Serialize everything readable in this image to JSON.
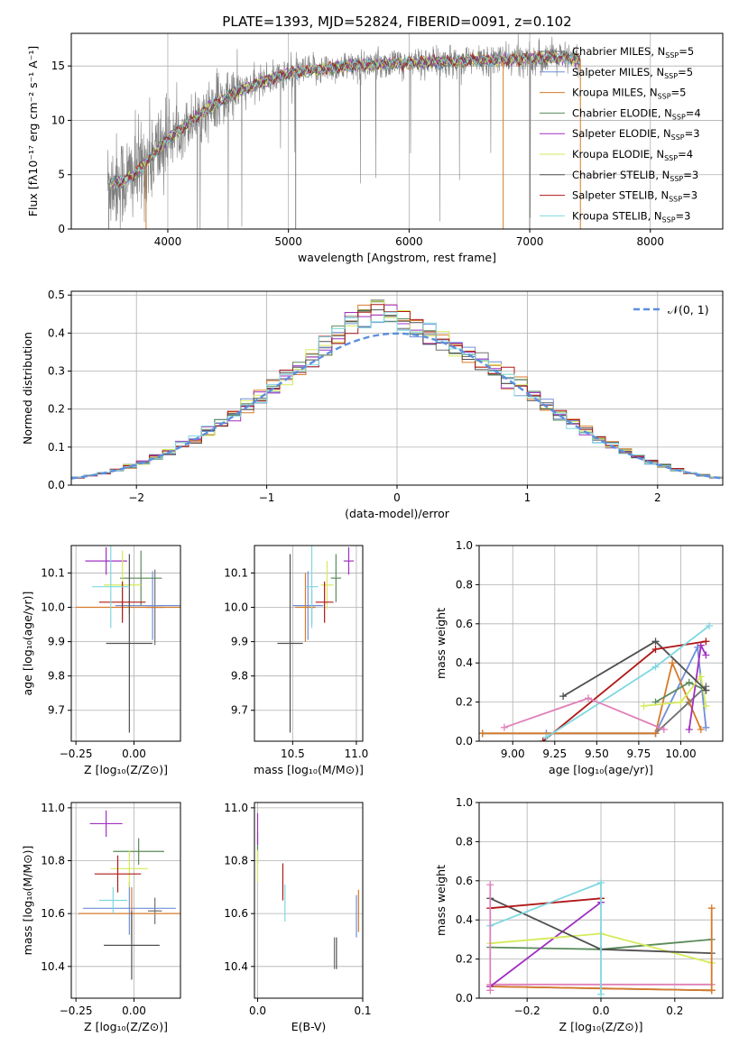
{
  "figure_title": "PLATE=1393, MJD=52824, FIBERID=0091, z=0.102",
  "legend_colors": [
    "#6a9a5a",
    "#6a9a5a",
    "#c89640",
    "#4e8a4e",
    "#9b30c0",
    "#d8e060",
    "#505050",
    "#b01818",
    "#7fd3dc"
  ],
  "models": [
    {
      "name": "Chabrier MILES",
      "nssp": 5,
      "color": "#707070"
    },
    {
      "name": "Salpeter MILES",
      "nssp": 5,
      "color": "#6f8fd8"
    },
    {
      "name": "Kroupa MILES",
      "nssp": 5,
      "color": "#d67a2a"
    },
    {
      "name": "Chabrier ELODIE",
      "nssp": 4,
      "color": "#5a8a5a"
    },
    {
      "name": "Salpeter ELODIE",
      "nssp": 3,
      "color": "#a030c0"
    },
    {
      "name": "Kroupa ELODIE",
      "nssp": 4,
      "color": "#d6ea5a"
    },
    {
      "name": "Chabrier STELIB",
      "nssp": 3,
      "color": "#505050"
    },
    {
      "name": "Salpeter STELIB",
      "nssp": 3,
      "color": "#b01818"
    },
    {
      "name": "Kroupa STELIB",
      "nssp": 3,
      "color": "#7fd8e0"
    }
  ],
  "chart_data": [
    {
      "id": "spectrum",
      "type": "line",
      "xlabel": "wavelength [Angstrom, rest frame]",
      "ylabel": "Flux [fλ10⁻¹⁷ erg cm⁻² s⁻¹ A⁻¹]",
      "xlim": [
        3200,
        8600
      ],
      "ylim": [
        0,
        18
      ],
      "xticks": [
        4000,
        5000,
        6000,
        7000,
        8000
      ],
      "yticks": [
        0,
        5,
        10,
        15
      ],
      "legend_position": "right",
      "data_wavelength_range": [
        3500,
        7420
      ],
      "continuum": {
        "x": [
          3500,
          3650,
          3750,
          3850,
          4000,
          4200,
          4500,
          4800,
          5000,
          5200,
          5500,
          5800,
          6000,
          6300,
          6600,
          6800,
          7000,
          7200,
          7420
        ],
        "y": [
          4.2,
          4.5,
          5.3,
          6.5,
          8.3,
          10.0,
          12.3,
          13.6,
          14.3,
          14.6,
          15.0,
          15.2,
          15.3,
          15.4,
          15.5,
          15.6,
          15.7,
          15.8,
          15.6
        ]
      }
    },
    {
      "id": "residuals",
      "type": "line",
      "xlabel": "(data-model)/error",
      "ylabel": "Normed distribution",
      "xlim": [
        -2.5,
        2.5
      ],
      "ylim": [
        0,
        0.51
      ],
      "xticks": [
        -2,
        -1,
        0,
        1,
        2
      ],
      "yticks": [
        0,
        0.1,
        0.2,
        0.3,
        0.4,
        0.5
      ],
      "legend": "𝒩(0, 1)",
      "legend_position": "top-right",
      "reference_curve": "normal(0,1)",
      "bin_width": 0.1,
      "histogram_peak": [
        0.49,
        0.47,
        0.46,
        0.44,
        0.43,
        0.41,
        0.4,
        0.42,
        0.44
      ]
    },
    {
      "id": "age-vs-Z",
      "type": "scatter",
      "xlabel": "Z [log₁₀(Z/Z⊙)]",
      "ylabel": "age  [log₁₀(age/yr)]",
      "xlim": [
        -0.27,
        0.2
      ],
      "ylim": [
        9.61,
        10.18
      ],
      "xticks": [
        -0.25,
        0.0
      ],
      "yticks": [
        9.7,
        9.8,
        9.9,
        10.0,
        10.1
      ],
      "points": [
        {
          "model": 0,
          "x": 0.09,
          "y": 10.0,
          "xerr": 0.04,
          "yerr": 0.11
        },
        {
          "model": 1,
          "x": 0.08,
          "y": 10.005,
          "xerr": 0.16,
          "yerr": 0.1
        },
        {
          "model": 2,
          "x": -0.02,
          "y": 10.0,
          "xerr": 0.23,
          "yerr": 0.02
        },
        {
          "model": 3,
          "x": 0.03,
          "y": 10.085,
          "xerr": 0.09,
          "yerr": 0.08
        },
        {
          "model": 4,
          "x": -0.12,
          "y": 10.135,
          "xerr": 0.09,
          "yerr": 0.04
        },
        {
          "model": 5,
          "x": -0.05,
          "y": 10.065,
          "xerr": 0.08,
          "yerr": 0.1
        },
        {
          "model": 6,
          "x": -0.02,
          "y": 9.895,
          "xerr": 0.1,
          "yerr": 0.26
        },
        {
          "model": 7,
          "x": -0.05,
          "y": 10.015,
          "xerr": 0.1,
          "yerr": 0.06
        },
        {
          "model": 8,
          "x": -0.1,
          "y": 10.06,
          "xerr": 0.08,
          "yerr": 0.12
        }
      ]
    },
    {
      "id": "age-vs-mass",
      "type": "scatter",
      "xlabel": "mass [log₁₀(M/M⊙)]",
      "ylabel": "",
      "xlim": [
        10.2,
        11.05
      ],
      "ylim": [
        9.61,
        10.18
      ],
      "xticks": [
        10.5,
        11.0
      ],
      "yticks": [
        9.7,
        9.8,
        9.9,
        10.0,
        10.1
      ],
      "points": [
        {
          "model": 0,
          "x": 10.65,
          "y": 10.0,
          "xerr": 0.02,
          "yerr": 0.05
        },
        {
          "model": 1,
          "x": 10.62,
          "y": 10.005,
          "xerr": 0.12,
          "yerr": 0.1
        },
        {
          "model": 2,
          "x": 10.6,
          "y": 10.0,
          "xerr": 0.08,
          "yerr": 0.1
        },
        {
          "model": 3,
          "x": 10.84,
          "y": 10.085,
          "xerr": 0.04,
          "yerr": 0.07
        },
        {
          "model": 4,
          "x": 10.94,
          "y": 10.135,
          "xerr": 0.04,
          "yerr": 0.04
        },
        {
          "model": 5,
          "x": 10.77,
          "y": 10.065,
          "xerr": 0.05,
          "yerr": 0.07
        },
        {
          "model": 6,
          "x": 10.48,
          "y": 9.895,
          "xerr": 0.1,
          "yerr": 0.26
        },
        {
          "model": 7,
          "x": 10.75,
          "y": 10.015,
          "xerr": 0.07,
          "yerr": 0.06
        },
        {
          "model": 8,
          "x": 10.65,
          "y": 10.06,
          "xerr": 0.05,
          "yerr": 0.12
        }
      ]
    },
    {
      "id": "weight-vs-age",
      "type": "line",
      "xlabel": "age  [log₁₀(age/yr)]",
      "ylabel": "mass weight",
      "xlim": [
        8.8,
        10.25
      ],
      "ylim": [
        0,
        1
      ],
      "xticks": [
        9.0,
        9.25,
        9.5,
        9.75,
        10.0
      ],
      "yticks": [
        0,
        0.2,
        0.4,
        0.6,
        0.8,
        1.0
      ],
      "series": [
        {
          "model": 0,
          "x": [
            8.82,
            9.2,
            9.85,
            10.05,
            10.15
          ],
          "y": [
            0.04,
            0.04,
            0.04,
            0.2,
            0.28
          ]
        },
        {
          "model": 1,
          "x": [
            9.2,
            9.85,
            10.1,
            10.15
          ],
          "y": [
            0.04,
            0.04,
            0.48,
            0.07
          ]
        },
        {
          "model": 2,
          "x": [
            8.82,
            9.85,
            9.95,
            10.12
          ],
          "y": [
            0.04,
            0.04,
            0.4,
            0.06
          ]
        },
        {
          "model": 3,
          "x": [
            9.85,
            10.05,
            10.15
          ],
          "y": [
            0.2,
            0.3,
            0.26
          ]
        },
        {
          "model": 4,
          "x": [
            10.05,
            10.12,
            10.15
          ],
          "y": [
            0.06,
            0.49,
            0.44
          ]
        },
        {
          "model": 5,
          "x": [
            9.78,
            10.0,
            10.12,
            10.15
          ],
          "y": [
            0.18,
            0.2,
            0.33,
            0.18
          ]
        },
        {
          "model": 6,
          "x": [
            9.3,
            9.85,
            10.15
          ],
          "y": [
            0.23,
            0.51,
            0.26
          ]
        },
        {
          "model": 7,
          "x": [
            9.18,
            9.85,
            10.15
          ],
          "y": [
            0.0,
            0.47,
            0.51
          ]
        },
        {
          "model": 8,
          "x": [
            9.2,
            9.85,
            10.17
          ],
          "y": [
            0.02,
            0.38,
            0.59
          ]
        },
        {
          "model": 1,
          "x": [
            8.95,
            9.45,
            9.9
          ],
          "y": [
            0.07,
            0.22,
            0.06
          ],
          "override_color": "#e080b8"
        }
      ]
    },
    {
      "id": "mass-vs-Z",
      "type": "scatter",
      "xlabel": "Z [log₁₀(Z/Z⊙)]",
      "ylabel": "mass [log₁₀(M/M⊙)]",
      "xlim": [
        -0.27,
        0.2
      ],
      "ylim": [
        10.28,
        11.02
      ],
      "xticks": [
        -0.25,
        0.0
      ],
      "yticks": [
        10.4,
        10.6,
        10.8,
        11.0
      ],
      "points": [
        {
          "model": 0,
          "x": 0.09,
          "y": 10.61,
          "xerr": 0.03,
          "yerr": 0.05
        },
        {
          "model": 1,
          "x": -0.02,
          "y": 10.62,
          "xerr": 0.2,
          "yerr": 0.1
        },
        {
          "model": 2,
          "x": -0.01,
          "y": 10.6,
          "xerr": 0.23,
          "yerr": 0.1
        },
        {
          "model": 3,
          "x": 0.02,
          "y": 10.835,
          "xerr": 0.11,
          "yerr": 0.05
        },
        {
          "model": 4,
          "x": -0.12,
          "y": 10.94,
          "xerr": 0.07,
          "yerr": 0.05
        },
        {
          "model": 5,
          "x": -0.02,
          "y": 10.77,
          "xerr": 0.08,
          "yerr": 0.07
        },
        {
          "model": 6,
          "x": -0.01,
          "y": 10.48,
          "xerr": 0.12,
          "yerr": 0.13
        },
        {
          "model": 7,
          "x": -0.07,
          "y": 10.75,
          "xerr": 0.1,
          "yerr": 0.07
        },
        {
          "model": 8,
          "x": -0.09,
          "y": 10.65,
          "xerr": 0.06,
          "yerr": 0.05
        }
      ]
    },
    {
      "id": "mass-vs-ebv",
      "type": "scatter",
      "xlabel": "E(B-V)",
      "ylabel": "",
      "xlim": [
        -0.003,
        0.1
      ],
      "ylim": [
        10.28,
        11.02
      ],
      "xticks": [
        0.0,
        0.1
      ],
      "yticks": [
        10.4,
        10.6,
        10.8,
        11.0
      ],
      "points": [
        {
          "model": 0,
          "x": 0.073,
          "y": 10.45,
          "xerr": 0,
          "yerr": 0.06
        },
        {
          "model": 1,
          "x": 0.094,
          "y": 10.59,
          "xerr": 0,
          "yerr": 0.08
        },
        {
          "model": 2,
          "x": 0.096,
          "y": 10.61,
          "xerr": 0,
          "yerr": 0.08
        },
        {
          "model": 3,
          "x": 0.0,
          "y": 10.85,
          "xerr": 0,
          "yerr": 0.06
        },
        {
          "model": 4,
          "x": 0.0,
          "y": 10.92,
          "xerr": 0,
          "yerr": 0.06
        },
        {
          "model": 5,
          "x": 0.0,
          "y": 10.78,
          "xerr": 0,
          "yerr": 0.06
        },
        {
          "model": 6,
          "x": 0.075,
          "y": 10.45,
          "xerr": 0,
          "yerr": 0.06
        },
        {
          "model": 7,
          "x": 0.024,
          "y": 10.72,
          "xerr": 0,
          "yerr": 0.07
        },
        {
          "model": 8,
          "x": 0.026,
          "y": 10.64,
          "xerr": 0,
          "yerr": 0.07
        }
      ]
    },
    {
      "id": "weight-vs-Z",
      "type": "line",
      "xlabel": "Z [log₁₀(Z/Z⊙)]",
      "ylabel": "mass weight",
      "xlim": [
        -0.33,
        0.33
      ],
      "ylim": [
        0,
        1
      ],
      "xticks": [
        -0.2,
        0.0,
        0.2
      ],
      "yticks": [
        0,
        0.2,
        0.4,
        0.6,
        0.8,
        1.0
      ],
      "series": [
        {
          "model": 0,
          "x": [
            -0.3,
            0.0,
            0.3
          ],
          "y": [
            0.06,
            0.05,
            0.04
          ]
        },
        {
          "model": 1,
          "x": [
            -0.3,
            0.0,
            0.3
          ],
          "y": [
            0.07,
            0.07,
            0.07
          ],
          "override_color": "#e080b8"
        },
        {
          "model": 2,
          "x": [
            -0.3,
            0.0,
            0.3
          ],
          "y": [
            0.06,
            0.05,
            0.04
          ]
        },
        {
          "model": 3,
          "x": [
            -0.3,
            0.0,
            0.3
          ],
          "y": [
            0.26,
            0.25,
            0.3
          ]
        },
        {
          "model": 4,
          "x": [
            -0.3,
            0.0
          ],
          "y": [
            0.06,
            0.49
          ]
        },
        {
          "model": 5,
          "x": [
            -0.3,
            0.0,
            0.3
          ],
          "y": [
            0.28,
            0.33,
            0.18
          ]
        },
        {
          "model": 6,
          "x": [
            -0.3,
            0.0,
            0.3
          ],
          "y": [
            0.51,
            0.25,
            0.23
          ]
        },
        {
          "model": 7,
          "x": [
            -0.3,
            0.0
          ],
          "y": [
            0.46,
            0.51
          ]
        },
        {
          "model": 8,
          "x": [
            -0.3,
            0.0,
            0.0
          ],
          "y": [
            0.37,
            0.59,
            0.02
          ]
        },
        {
          "model": 2,
          "x": [
            0.3,
            0.3
          ],
          "y": [
            0.46,
            0.04
          ]
        },
        {
          "model": 1,
          "x": [
            -0.3,
            -0.3
          ],
          "y": [
            0.58,
            0.04
          ],
          "override_color": "#e080b8"
        }
      ]
    }
  ]
}
